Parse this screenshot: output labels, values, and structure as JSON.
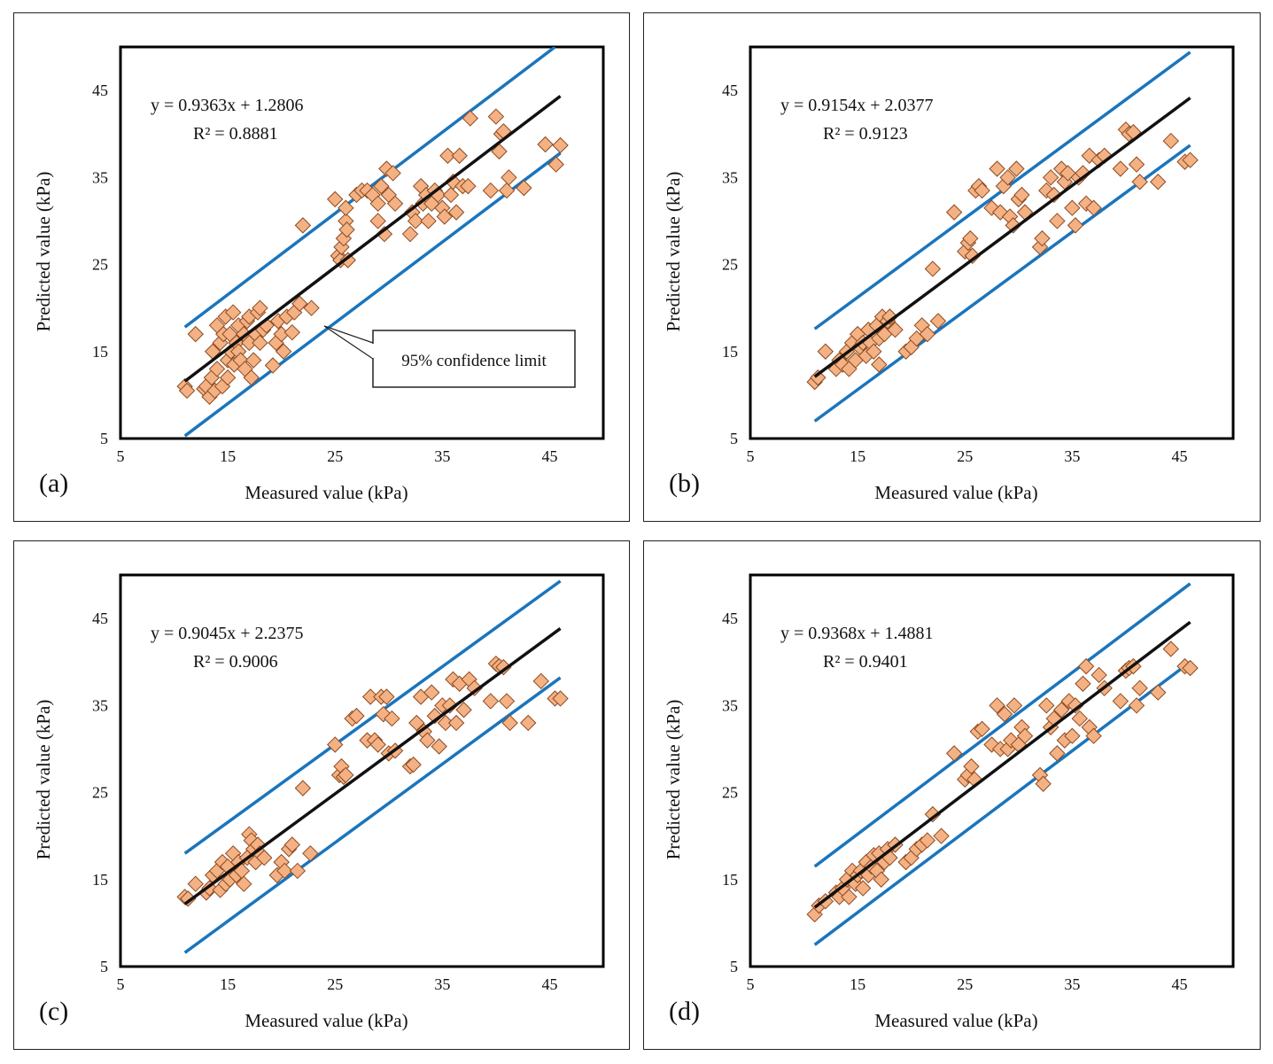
{
  "colors": {
    "fit": "#111111",
    "limit": "#1a75bc",
    "marker_fill": "#f4b183",
    "marker_stroke": "#8c4a21",
    "frame": "#000000"
  },
  "common": {
    "xlabel": "Measured value (kPa)",
    "ylabel": "Predicted value (kPa)",
    "xticks": [
      "5",
      "15",
      "25",
      "35",
      "45"
    ],
    "yticks": [
      "5",
      "15",
      "25",
      "35",
      "45"
    ],
    "xlim": [
      5,
      50
    ],
    "ylim": [
      5,
      50
    ],
    "callout": "95% confidence limit"
  },
  "chart_data": [
    {
      "type": "scatter",
      "panel": "(a)",
      "equation": "y = 0.9363x + 1.2806",
      "r2": "R² = 0.8881",
      "fit": {
        "slope": 0.9363,
        "intercept": 1.2806,
        "x": [
          11,
          46
        ]
      },
      "upper_limit": {
        "x": [
          11,
          45.5
        ],
        "y": [
          17.8,
          50
        ]
      },
      "lower_limit": {
        "x": [
          11,
          46
        ],
        "y": [
          5.3,
          37.8
        ]
      },
      "points": [
        [
          11,
          11
        ],
        [
          11.2,
          10.5
        ],
        [
          12,
          17
        ],
        [
          12.8,
          10.7
        ],
        [
          13,
          11
        ],
        [
          13.3,
          9.8
        ],
        [
          13.5,
          12
        ],
        [
          13.6,
          15
        ],
        [
          13.8,
          10.5
        ],
        [
          14,
          18
        ],
        [
          14,
          13
        ],
        [
          14.3,
          16
        ],
        [
          14.5,
          11
        ],
        [
          14.6,
          17
        ],
        [
          14.8,
          19
        ],
        [
          15,
          14
        ],
        [
          15,
          12
        ],
        [
          15.2,
          17
        ],
        [
          15.3,
          15
        ],
        [
          15.5,
          19.5
        ],
        [
          15.6,
          13.5
        ],
        [
          15.8,
          16
        ],
        [
          16,
          15
        ],
        [
          16,
          18
        ],
        [
          16.2,
          14
        ],
        [
          16.5,
          17
        ],
        [
          16.6,
          13
        ],
        [
          16.8,
          18.5
        ],
        [
          17,
          16
        ],
        [
          17,
          19
        ],
        [
          17.2,
          12
        ],
        [
          17.4,
          14
        ],
        [
          17.6,
          17
        ],
        [
          17.8,
          19.5
        ],
        [
          18,
          16
        ],
        [
          18,
          20
        ],
        [
          18.3,
          17.5
        ],
        [
          18.6,
          18
        ],
        [
          19.2,
          13.4
        ],
        [
          19.5,
          16
        ],
        [
          19.7,
          18.5
        ],
        [
          20,
          17
        ],
        [
          20.2,
          15
        ],
        [
          20.5,
          19
        ],
        [
          21,
          17.2
        ],
        [
          21.2,
          19.5
        ],
        [
          21.7,
          20.5
        ],
        [
          22,
          29.5
        ],
        [
          22.8,
          20
        ],
        [
          25,
          32.5
        ],
        [
          25.3,
          26
        ],
        [
          25.5,
          25.5
        ],
        [
          25.6,
          27
        ],
        [
          25.8,
          28
        ],
        [
          26,
          30
        ],
        [
          26,
          31.5
        ],
        [
          26.1,
          29
        ],
        [
          26.2,
          25.5
        ],
        [
          27,
          33
        ],
        [
          27.5,
          33.5
        ],
        [
          28,
          33.5
        ],
        [
          28.5,
          33
        ],
        [
          29,
          30
        ],
        [
          29,
          32
        ],
        [
          29.3,
          34
        ],
        [
          29.6,
          28.5
        ],
        [
          29.8,
          36
        ],
        [
          30,
          33
        ],
        [
          30.4,
          35.5
        ],
        [
          30.6,
          32
        ],
        [
          32,
          28.5
        ],
        [
          32.2,
          31
        ],
        [
          32.5,
          30
        ],
        [
          33,
          34
        ],
        [
          33.2,
          32
        ],
        [
          33.5,
          33
        ],
        [
          33.7,
          30
        ],
        [
          34,
          32
        ],
        [
          34.3,
          33.5
        ],
        [
          34.6,
          33
        ],
        [
          35,
          31.5
        ],
        [
          35.2,
          30.5
        ],
        [
          35.5,
          37.5
        ],
        [
          35.8,
          33
        ],
        [
          36,
          34.5
        ],
        [
          36.3,
          31
        ],
        [
          36.6,
          37.5
        ],
        [
          36.9,
          34
        ],
        [
          37.4,
          34
        ],
        [
          37.6,
          41.8
        ],
        [
          39.5,
          33.5
        ],
        [
          40,
          42
        ],
        [
          40.3,
          38
        ],
        [
          40.5,
          40
        ],
        [
          40.7,
          40.3
        ],
        [
          41,
          33.5
        ],
        [
          41.2,
          35
        ],
        [
          42.6,
          33.8
        ],
        [
          44.6,
          38.8
        ],
        [
          45.6,
          36.5
        ],
        [
          46,
          38.7
        ]
      ]
    },
    {
      "type": "scatter",
      "panel": "(b)",
      "equation": "y = 0.9154x + 2.0377",
      "r2": "R² = 0.9123",
      "fit": {
        "slope": 0.9154,
        "intercept": 2.0377,
        "x": [
          11,
          46
        ]
      },
      "upper_limit": {
        "x": [
          11,
          46
        ],
        "y": [
          17.6,
          49.4
        ]
      },
      "lower_limit": {
        "x": [
          11,
          46
        ],
        "y": [
          7,
          38.7
        ]
      },
      "points": [
        [
          11,
          11.5
        ],
        [
          11.3,
          12
        ],
        [
          12,
          15
        ],
        [
          13,
          13
        ],
        [
          13.3,
          14
        ],
        [
          13.6,
          13.5
        ],
        [
          14,
          15
        ],
        [
          14.2,
          13
        ],
        [
          14.5,
          16
        ],
        [
          14.8,
          14
        ],
        [
          15,
          17
        ],
        [
          15.2,
          15.5
        ],
        [
          15.5,
          16
        ],
        [
          15.8,
          14.5
        ],
        [
          16,
          17.5
        ],
        [
          16.2,
          16
        ],
        [
          16.5,
          15
        ],
        [
          16.8,
          18
        ],
        [
          17,
          16.5
        ],
        [
          17,
          13.5
        ],
        [
          17.3,
          19
        ],
        [
          17.5,
          17
        ],
        [
          17.8,
          18.5
        ],
        [
          18,
          19
        ],
        [
          18.5,
          17.5
        ],
        [
          19.5,
          15
        ],
        [
          20,
          15.5
        ],
        [
          20.5,
          16.5
        ],
        [
          21,
          18
        ],
        [
          21.5,
          17
        ],
        [
          22,
          24.5
        ],
        [
          22.5,
          18.5
        ],
        [
          24,
          31
        ],
        [
          25,
          26.5
        ],
        [
          25.3,
          27.5
        ],
        [
          25.5,
          28
        ],
        [
          25.7,
          26
        ],
        [
          26,
          33.5
        ],
        [
          26.3,
          34
        ],
        [
          26.6,
          33.5
        ],
        [
          27.5,
          31.5
        ],
        [
          28,
          36
        ],
        [
          28.3,
          31
        ],
        [
          28.6,
          34
        ],
        [
          29,
          35
        ],
        [
          29.2,
          30.5
        ],
        [
          29.5,
          29.5
        ],
        [
          29.8,
          36
        ],
        [
          30,
          32.5
        ],
        [
          30.3,
          33
        ],
        [
          30.6,
          31
        ],
        [
          32,
          27
        ],
        [
          32.2,
          28
        ],
        [
          32.6,
          33.5
        ],
        [
          33,
          35
        ],
        [
          33.3,
          33
        ],
        [
          33.6,
          30
        ],
        [
          34,
          36
        ],
        [
          34.3,
          34.5
        ],
        [
          34.6,
          35.5
        ],
        [
          35,
          31.5
        ],
        [
          35.3,
          29.5
        ],
        [
          35.6,
          35
        ],
        [
          36,
          35.5
        ],
        [
          36.3,
          32
        ],
        [
          36.6,
          37.5
        ],
        [
          37,
          31.5
        ],
        [
          37.5,
          37
        ],
        [
          38,
          37.5
        ],
        [
          39.5,
          36
        ],
        [
          40,
          40.5
        ],
        [
          40.3,
          40
        ],
        [
          40.7,
          40.2
        ],
        [
          41,
          36.5
        ],
        [
          41.3,
          34.5
        ],
        [
          43,
          34.5
        ],
        [
          44.2,
          39.2
        ],
        [
          45.5,
          36.8
        ],
        [
          46,
          37
        ]
      ]
    },
    {
      "type": "scatter",
      "panel": "(c)",
      "equation": "y = 0.9045x + 2.2375",
      "r2": "R² = 0.9006",
      "fit": {
        "slope": 0.9045,
        "intercept": 2.2375,
        "x": [
          11,
          46
        ]
      },
      "upper_limit": {
        "x": [
          11,
          46
        ],
        "y": [
          18,
          49.3
        ]
      },
      "lower_limit": {
        "x": [
          11,
          46
        ],
        "y": [
          6.6,
          38.2
        ]
      },
      "points": [
        [
          11,
          13
        ],
        [
          11.3,
          12.8
        ],
        [
          12,
          14.5
        ],
        [
          13,
          13.5
        ],
        [
          13.3,
          14
        ],
        [
          13.6,
          15.5
        ],
        [
          14,
          16
        ],
        [
          14.3,
          13.8
        ],
        [
          14.5,
          17
        ],
        [
          14.8,
          14.5
        ],
        [
          15,
          16.5
        ],
        [
          15.2,
          15
        ],
        [
          15.5,
          18
        ],
        [
          15.8,
          15.5
        ],
        [
          16,
          17
        ],
        [
          16.3,
          16
        ],
        [
          16.5,
          14.5
        ],
        [
          16.8,
          17.5
        ],
        [
          17,
          20.2
        ],
        [
          17.2,
          19.5
        ],
        [
          17.4,
          18.5
        ],
        [
          17.6,
          17
        ],
        [
          17.8,
          19
        ],
        [
          18,
          18
        ],
        [
          18.4,
          17.5
        ],
        [
          19.6,
          15.5
        ],
        [
          20,
          17
        ],
        [
          20.3,
          16
        ],
        [
          20.7,
          18.5
        ],
        [
          21,
          19
        ],
        [
          21.5,
          16
        ],
        [
          22,
          25.5
        ],
        [
          22.7,
          18
        ],
        [
          25,
          30.5
        ],
        [
          25.4,
          27
        ],
        [
          25.6,
          28
        ],
        [
          25.8,
          26.8
        ],
        [
          26,
          27
        ],
        [
          26.6,
          33.5
        ],
        [
          27,
          33.8
        ],
        [
          28,
          31
        ],
        [
          28.3,
          36
        ],
        [
          28.7,
          31
        ],
        [
          29,
          30.5
        ],
        [
          29.3,
          36
        ],
        [
          29.5,
          34
        ],
        [
          29.8,
          36
        ],
        [
          30,
          29.5
        ],
        [
          30.3,
          33.5
        ],
        [
          30.6,
          29.8
        ],
        [
          32,
          28
        ],
        [
          32.3,
          28.2
        ],
        [
          32.6,
          33
        ],
        [
          33,
          36
        ],
        [
          33.3,
          32
        ],
        [
          33.6,
          31
        ],
        [
          34,
          36.5
        ],
        [
          34.3,
          33.8
        ],
        [
          34.7,
          30.3
        ],
        [
          35,
          35
        ],
        [
          35.3,
          33
        ],
        [
          35.7,
          35
        ],
        [
          36,
          38
        ],
        [
          36.3,
          33
        ],
        [
          36.6,
          37.5
        ],
        [
          37,
          34.5
        ],
        [
          37.5,
          38
        ],
        [
          38,
          37
        ],
        [
          39.5,
          35.5
        ],
        [
          40,
          39.8
        ],
        [
          40.3,
          39.5
        ],
        [
          40.7,
          39.4
        ],
        [
          41,
          35.5
        ],
        [
          41.3,
          33
        ],
        [
          43,
          33
        ],
        [
          44.2,
          37.8
        ],
        [
          45.5,
          35.8
        ],
        [
          46,
          35.8
        ]
      ]
    },
    {
      "type": "scatter",
      "panel": "(d)",
      "equation": "y = 0.9368x + 1.4881",
      "r2": "R² = 0.9401",
      "fit": {
        "slope": 0.9368,
        "intercept": 1.4881,
        "x": [
          11,
          46
        ]
      },
      "upper_limit": {
        "x": [
          11,
          46
        ],
        "y": [
          16.5,
          49
        ]
      },
      "lower_limit": {
        "x": [
          11,
          46
        ],
        "y": [
          7.5,
          40
        ]
      },
      "points": [
        [
          11,
          11
        ],
        [
          11.4,
          12
        ],
        [
          12,
          12.5
        ],
        [
          13,
          13.5
        ],
        [
          13.3,
          13
        ],
        [
          13.6,
          14
        ],
        [
          14,
          15
        ],
        [
          14.2,
          13
        ],
        [
          14.5,
          16
        ],
        [
          14.8,
          14.5
        ],
        [
          15,
          15.5
        ],
        [
          15.3,
          16
        ],
        [
          15.5,
          14
        ],
        [
          15.8,
          17
        ],
        [
          16,
          15.5
        ],
        [
          16.3,
          16.5
        ],
        [
          16.5,
          17.8
        ],
        [
          16.8,
          16
        ],
        [
          17,
          18
        ],
        [
          17.2,
          15
        ],
        [
          17.5,
          17
        ],
        [
          17.8,
          18.5
        ],
        [
          18,
          17.5
        ],
        [
          18.5,
          19
        ],
        [
          19.5,
          17
        ],
        [
          20,
          17.5
        ],
        [
          20.5,
          18.5
        ],
        [
          21,
          19
        ],
        [
          21.5,
          19.5
        ],
        [
          22,
          22.5
        ],
        [
          22.8,
          20
        ],
        [
          24,
          29.5
        ],
        [
          25,
          26.5
        ],
        [
          25.3,
          27
        ],
        [
          25.6,
          28
        ],
        [
          25.9,
          26.5
        ],
        [
          26.2,
          32
        ],
        [
          26.6,
          32.3
        ],
        [
          27.5,
          30.5
        ],
        [
          28,
          35
        ],
        [
          28.3,
          30
        ],
        [
          28.7,
          34
        ],
        [
          29,
          30
        ],
        [
          29.3,
          31
        ],
        [
          29.6,
          35
        ],
        [
          30,
          30.5
        ],
        [
          30.3,
          32.5
        ],
        [
          30.6,
          31.5
        ],
        [
          32,
          27
        ],
        [
          32.3,
          26
        ],
        [
          32.6,
          35
        ],
        [
          33,
          32.5
        ],
        [
          33.3,
          33.5
        ],
        [
          33.6,
          29.5
        ],
        [
          34,
          34.5
        ],
        [
          34.3,
          31
        ],
        [
          34.7,
          35.5
        ],
        [
          35,
          31.5
        ],
        [
          35.3,
          35
        ],
        [
          35.7,
          33.5
        ],
        [
          36,
          37.5
        ],
        [
          36.3,
          39.5
        ],
        [
          36.6,
          32.5
        ],
        [
          37,
          31.5
        ],
        [
          37.5,
          38.5
        ],
        [
          38,
          37
        ],
        [
          39.5,
          35.5
        ],
        [
          40,
          39
        ],
        [
          40.3,
          39.3
        ],
        [
          40.7,
          39.5
        ],
        [
          41,
          35
        ],
        [
          41.3,
          37
        ],
        [
          43,
          36.5
        ],
        [
          44.2,
          41.5
        ],
        [
          45.5,
          39.5
        ],
        [
          46,
          39.3
        ]
      ]
    }
  ]
}
